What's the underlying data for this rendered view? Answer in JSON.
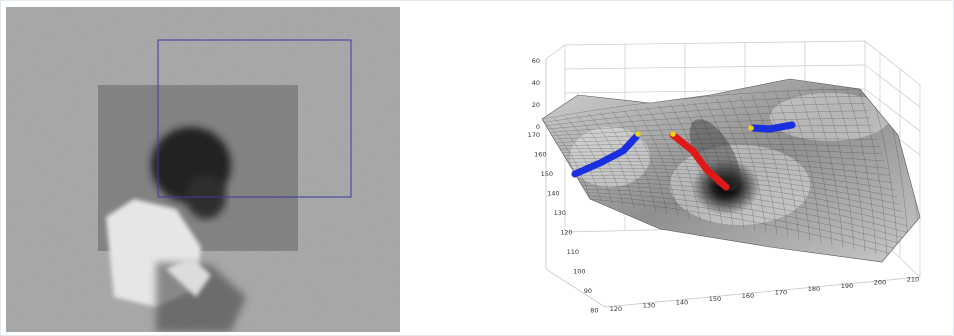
{
  "figure": {
    "left_panel": {
      "description_icon": "grayscale-video-frame",
      "search_window_color": "#3a3aa8"
    },
    "right_panel": {
      "z_ticks": [
        "60",
        "40",
        "20",
        "0"
      ],
      "y_ticks": [
        "170",
        "160",
        "150",
        "140",
        "130",
        "120",
        "110",
        "100",
        "90",
        "80"
      ],
      "x_ticks": [
        "120",
        "130",
        "140",
        "150",
        "160",
        "170",
        "180",
        "190",
        "200",
        "210"
      ],
      "track_colors": {
        "left": "#1a2fe0",
        "center": "#e01818",
        "right": "#1a2fe0",
        "start_marker": "#e8d21a"
      }
    }
  }
}
